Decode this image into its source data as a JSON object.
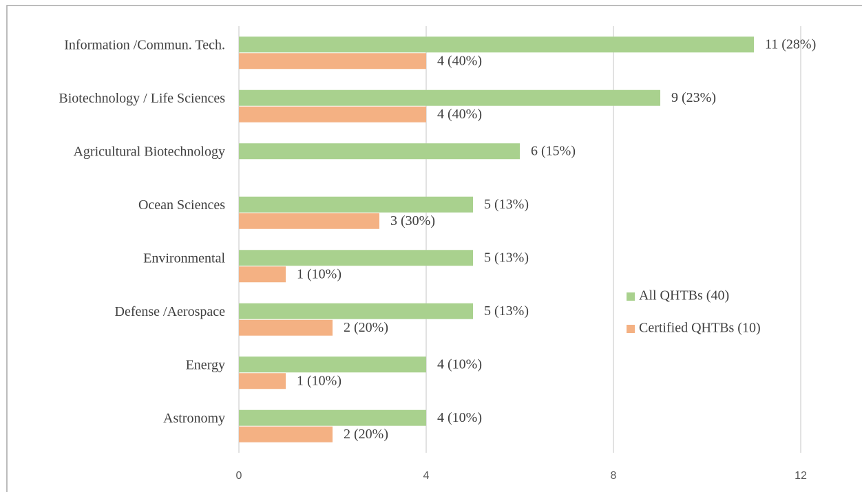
{
  "chart_data": {
    "type": "bar",
    "orientation": "horizontal",
    "categories": [
      "Information /Commun. Tech.",
      "Biotechnology / Life Sciences",
      "Agricultural Biotechnology",
      "Ocean Sciences",
      "Environmental",
      "Defense /Aerospace",
      "Energy",
      "Astronomy"
    ],
    "series": [
      {
        "name": "All QHTBs (40)",
        "color": "#a9d18e",
        "values": [
          11,
          9,
          6,
          5,
          5,
          5,
          4,
          4
        ],
        "value_labels": [
          "11 (28%)",
          "9 (23%)",
          "6 (15%)",
          "5 (13%)",
          "5 (13%)",
          "5 (13%)",
          "4 (10%)",
          "4 (10%)"
        ]
      },
      {
        "name": "Certified QHTBs (10)",
        "color": "#f4b183",
        "values": [
          4,
          4,
          null,
          3,
          1,
          2,
          1,
          2
        ],
        "value_labels": [
          "4 (40%)",
          "4 (40%)",
          null,
          "3 (30%)",
          "1 (10%)",
          "2 (20%)",
          "1 (10%)",
          "2 (20%)"
        ]
      }
    ],
    "xlim": [
      0,
      13
    ],
    "xticks": [
      0,
      4,
      8,
      12
    ],
    "grid": true,
    "legend": "right"
  }
}
